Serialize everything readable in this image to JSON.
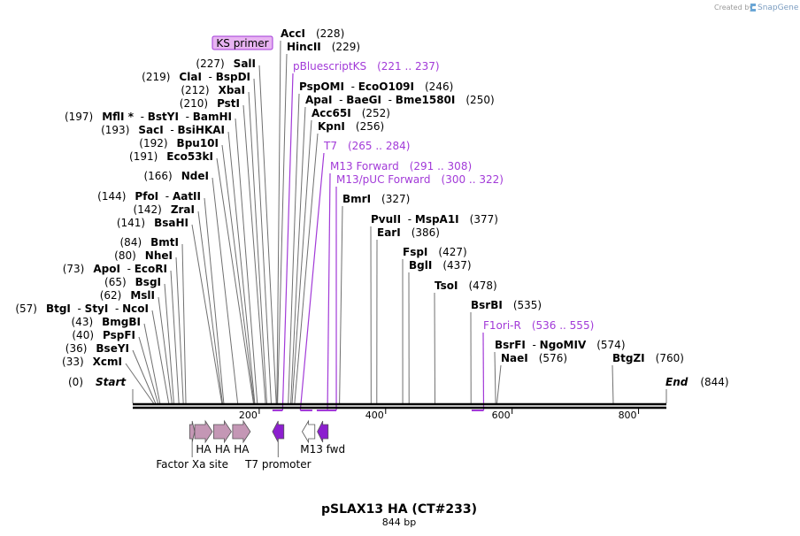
{
  "credit": {
    "text": "Created by",
    "brand": "SnapGene"
  },
  "title": "pSLAX13 HA (CT#233)",
  "length_label": "844 bp",
  "sequence_length": 844,
  "colors": {
    "primer": "#a23ad8",
    "feature_pink": "#c497b5",
    "feature_purple": "#8c1fcf",
    "feature_white": "#ffffff"
  },
  "ends": {
    "start": {
      "name": "Start",
      "pos": "(0)"
    },
    "end": {
      "name": "End",
      "pos": "(844)"
    }
  },
  "ticks": [
    {
      "value": 200,
      "label": "200"
    },
    {
      "value": 400,
      "label": "400"
    },
    {
      "value": 600,
      "label": "600"
    },
    {
      "value": 800,
      "label": "800"
    }
  ],
  "ks_primer": {
    "label": "KS primer"
  },
  "left_labels": [
    {
      "pos": "(227)",
      "bp": 227,
      "names": [
        "SalI"
      ]
    },
    {
      "pos": "(219)",
      "bp": 219,
      "names": [
        "ClaI",
        "BspDI"
      ]
    },
    {
      "pos": "(212)",
      "bp": 212,
      "names": [
        "XbaI"
      ]
    },
    {
      "pos": "(210)",
      "bp": 210,
      "names": [
        "PstI"
      ]
    },
    {
      "pos": "(197)",
      "bp": 197,
      "names": [
        "MflI *",
        "BstYI",
        "BamHI"
      ]
    },
    {
      "pos": "(193)",
      "bp": 193,
      "names": [
        "SacI",
        "BsiHKAI"
      ]
    },
    {
      "pos": "(192)",
      "bp": 192,
      "names": [
        "Bpu10I"
      ]
    },
    {
      "pos": "(191)",
      "bp": 191,
      "names": [
        "Eco53kI"
      ]
    },
    {
      "pos": "(166)",
      "bp": 166,
      "names": [
        "NdeI"
      ]
    },
    {
      "pos": "(144)",
      "bp": 144,
      "names": [
        "PfoI",
        "AatII"
      ]
    },
    {
      "pos": "(142)",
      "bp": 142,
      "names": [
        "ZraI"
      ]
    },
    {
      "pos": "(141)",
      "bp": 141,
      "names": [
        "BsaHI"
      ]
    },
    {
      "pos": "(84)",
      "bp": 84,
      "names": [
        "BmtI"
      ]
    },
    {
      "pos": "(80)",
      "bp": 80,
      "names": [
        "NheI"
      ]
    },
    {
      "pos": "(73)",
      "bp": 73,
      "names": [
        "ApoI",
        "EcoRI"
      ]
    },
    {
      "pos": "(65)",
      "bp": 65,
      "names": [
        "BsgI"
      ]
    },
    {
      "pos": "(62)",
      "bp": 62,
      "names": [
        "MslI"
      ]
    },
    {
      "pos": "(57)",
      "bp": 57,
      "names": [
        "BtgI",
        "StyI",
        "NcoI"
      ]
    },
    {
      "pos": "(43)",
      "bp": 43,
      "names": [
        "BmgBI"
      ]
    },
    {
      "pos": "(40)",
      "bp": 40,
      "names": [
        "PspFI"
      ]
    },
    {
      "pos": "(36)",
      "bp": 36,
      "names": [
        "BseYI"
      ]
    },
    {
      "pos": "(33)",
      "bp": 33,
      "names": [
        "XcmI"
      ]
    }
  ],
  "right_labels": [
    {
      "pos": "(228)",
      "bp": 228,
      "names": [
        "AccI"
      ]
    },
    {
      "pos": "(229)",
      "bp": 229,
      "names": [
        "HincII"
      ]
    },
    {
      "pos": "(221 .. 237)",
      "bp": 237,
      "primer": "pBluescriptKS"
    },
    {
      "pos": "(246)",
      "bp": 246,
      "names": [
        "PspOMI",
        "EcoO109I"
      ]
    },
    {
      "pos": "(250)",
      "bp": 250,
      "names": [
        "ApaI",
        "BaeGI",
        "Bme1580I"
      ]
    },
    {
      "pos": "(252)",
      "bp": 252,
      "names": [
        "Acc65I"
      ]
    },
    {
      "pos": "(256)",
      "bp": 256,
      "names": [
        "KpnI"
      ]
    },
    {
      "pos": "(265 .. 284)",
      "bp": 265,
      "primer": "T7"
    },
    {
      "pos": "(291 .. 308)",
      "bp": 308,
      "primer": "M13 Forward"
    },
    {
      "pos": "(300 .. 322)",
      "bp": 322,
      "primer": "M13/pUC Forward"
    },
    {
      "pos": "(327)",
      "bp": 327,
      "names": [
        "BmrI"
      ]
    },
    {
      "pos": "(377)",
      "bp": 377,
      "names": [
        "PvuII",
        "MspA1I"
      ]
    },
    {
      "pos": "(386)",
      "bp": 386,
      "names": [
        "EarI"
      ]
    },
    {
      "pos": "(427)",
      "bp": 427,
      "names": [
        "FspI"
      ]
    },
    {
      "pos": "(437)",
      "bp": 437,
      "names": [
        "BglI"
      ]
    },
    {
      "pos": "(478)",
      "bp": 478,
      "names": [
        "TsoI"
      ]
    },
    {
      "pos": "(535)",
      "bp": 535,
      "names": [
        "BsrBI"
      ]
    },
    {
      "pos": "(536 .. 555)",
      "bp": 555,
      "primer": "F1ori-R"
    },
    {
      "pos": "(574)",
      "bp": 574,
      "names": [
        "BsrFI",
        "NgoMIV"
      ]
    },
    {
      "pos": "(576)",
      "bp": 576,
      "names": [
        "NaeI"
      ]
    },
    {
      "pos": "(760)",
      "bp": 760,
      "names": [
        "BtgZI"
      ]
    }
  ],
  "primer_spans": [
    {
      "name": "pBluescriptKS",
      "start": 221,
      "end": 237
    },
    {
      "name": "T7",
      "start": 265,
      "end": 284
    },
    {
      "name": "M13 Forward",
      "start": 291,
      "end": 308
    },
    {
      "name": "M13/pUC Forward",
      "start": 300,
      "end": 322
    },
    {
      "name": "F1ori-R",
      "start": 536,
      "end": 555
    }
  ],
  "features": [
    {
      "label": "Factor Xa site",
      "start": 90,
      "end": 98,
      "color": "pink",
      "direction": "right"
    },
    {
      "label": "HA",
      "start": 98,
      "end": 126,
      "color": "pink",
      "direction": "right"
    },
    {
      "label": "HA",
      "start": 128,
      "end": 156,
      "color": "pink",
      "direction": "right"
    },
    {
      "label": "HA",
      "start": 158,
      "end": 186,
      "color": "pink",
      "direction": "right"
    },
    {
      "label": "T7 promoter",
      "start": 221,
      "end": 239,
      "color": "purple",
      "direction": "left"
    },
    {
      "label": "",
      "start": 268,
      "end": 288,
      "color": "white",
      "direction": "left"
    },
    {
      "label": "M13 fwd",
      "start": 292,
      "end": 309,
      "color": "purple",
      "direction": "left"
    }
  ]
}
